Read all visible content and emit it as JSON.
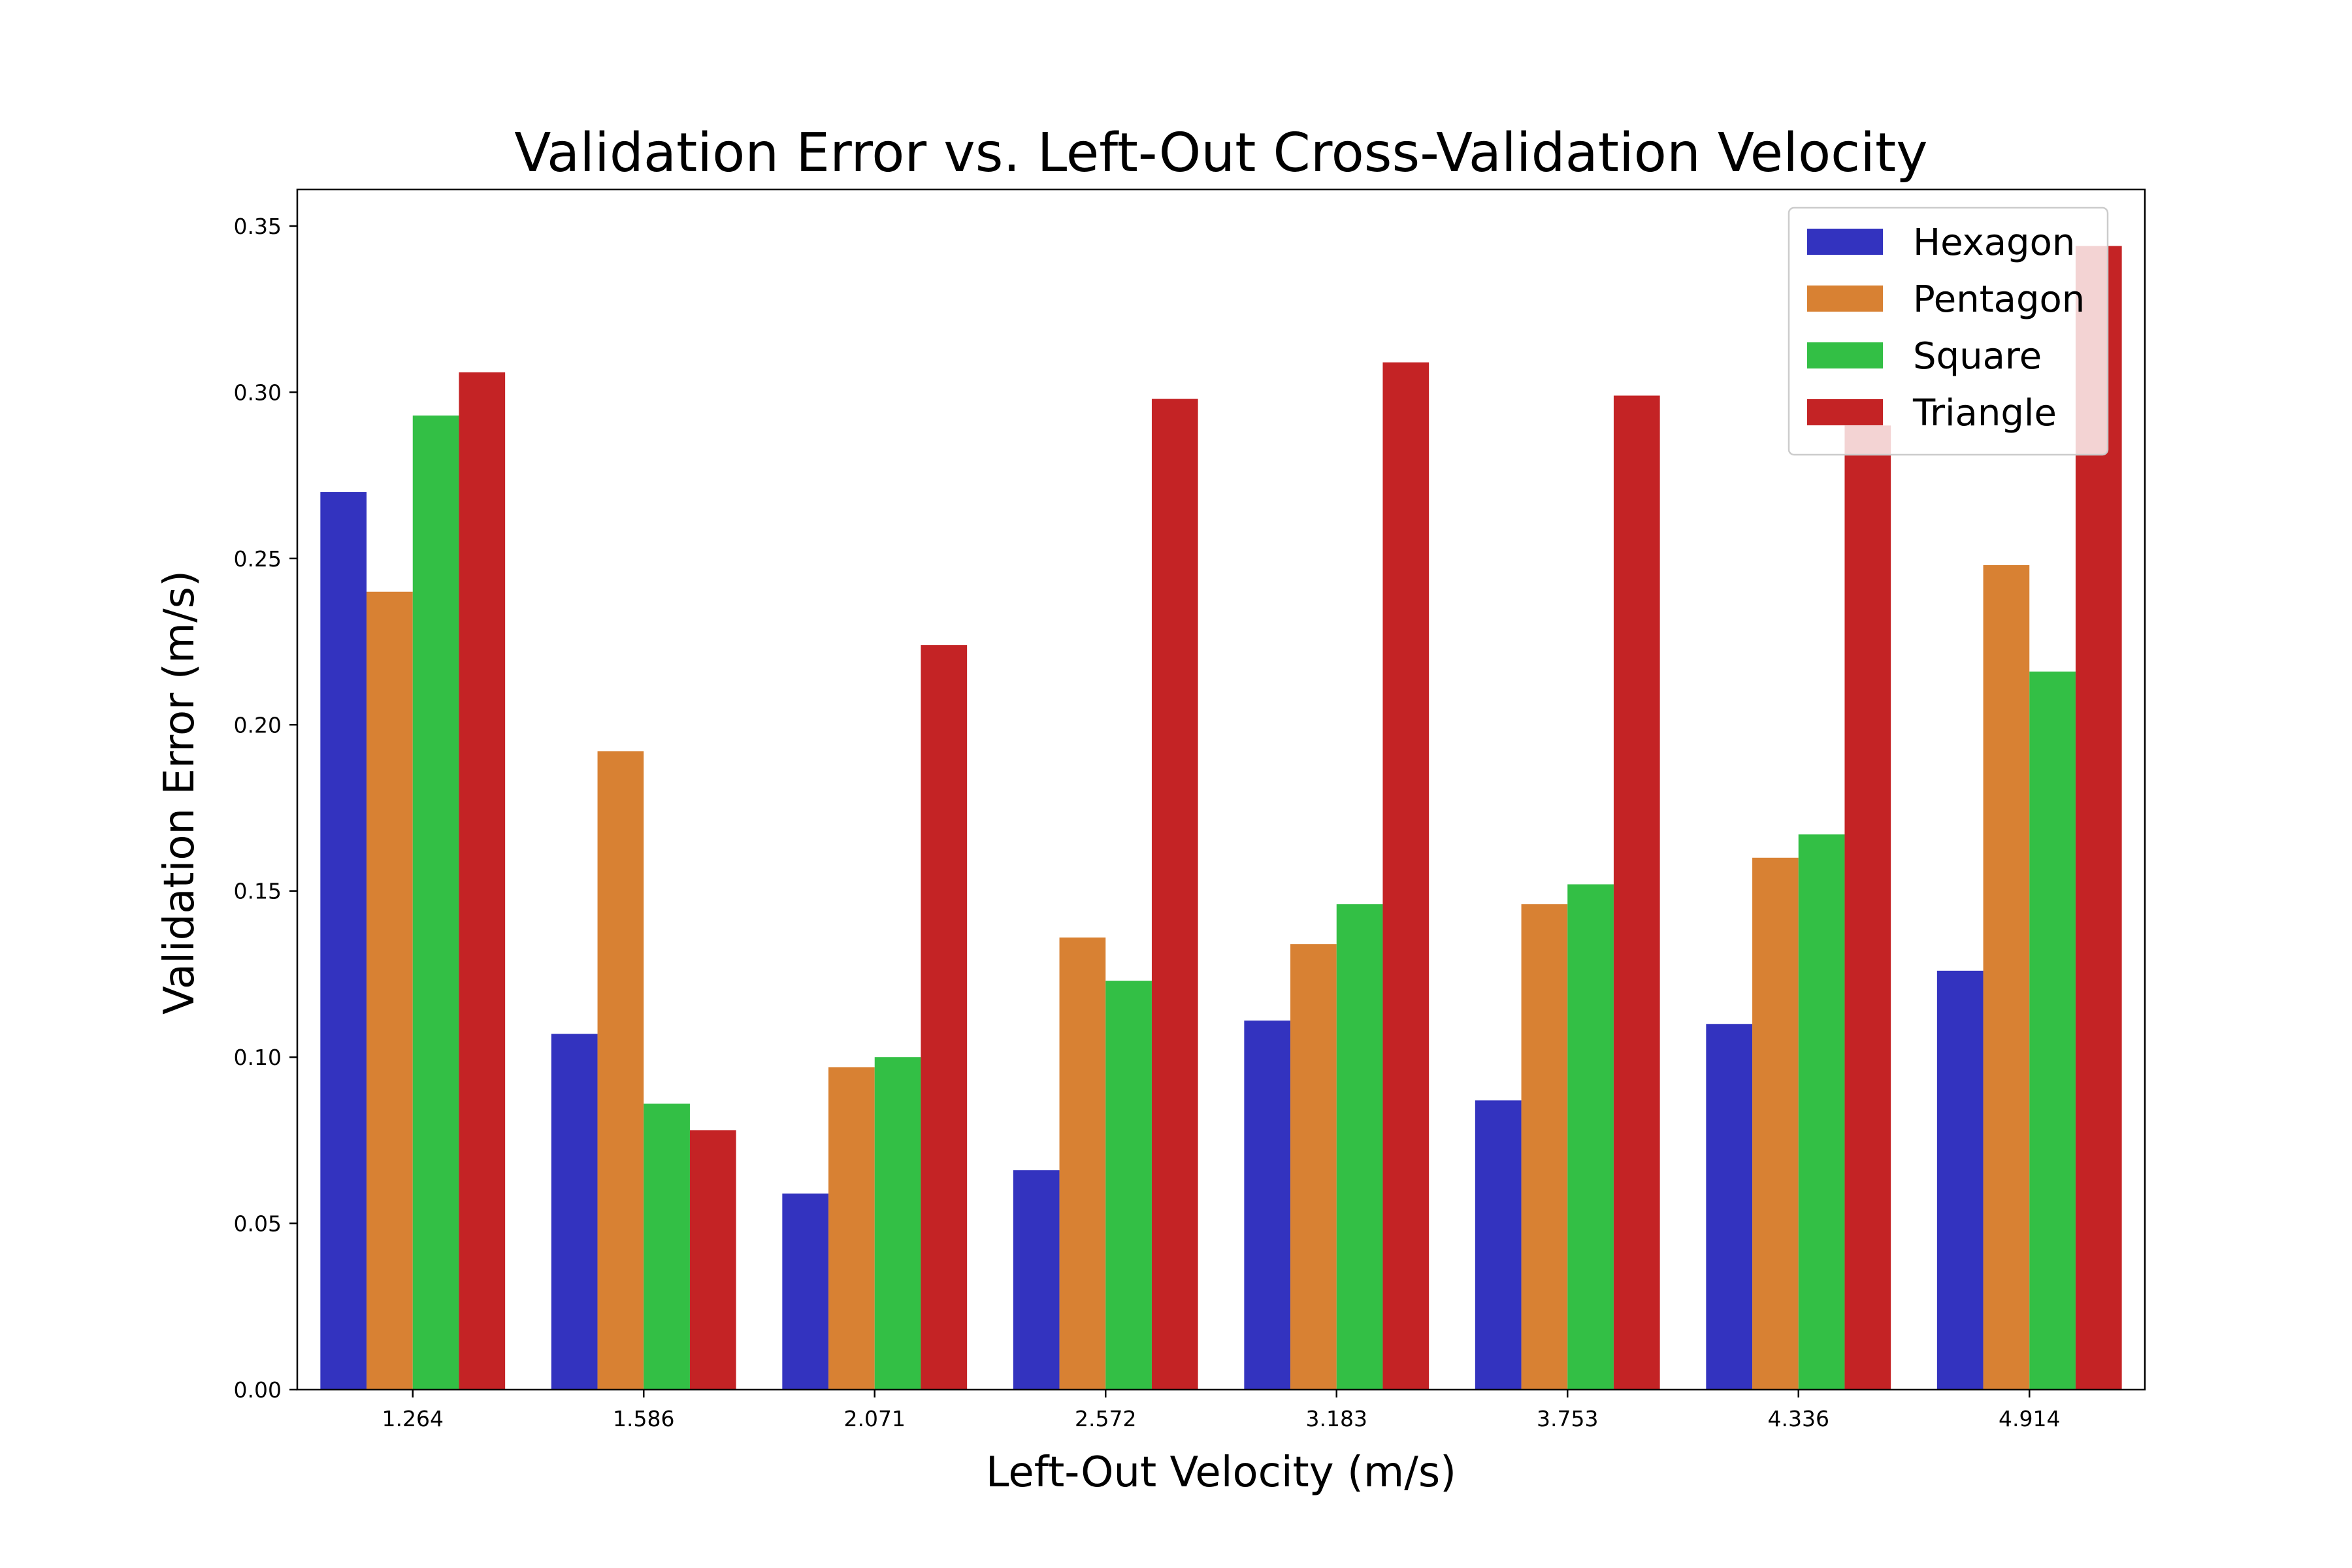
{
  "chart_data": {
    "type": "bar",
    "title": "Validation Error vs. Left-Out Cross-Validation Velocity",
    "xlabel": "Left-Out Velocity (m/s)",
    "ylabel": "Validation Error (m/s)",
    "categories": [
      "1.264",
      "1.586",
      "2.071",
      "2.572",
      "3.183",
      "3.753",
      "4.336",
      "4.914"
    ],
    "ylim": [
      0,
      0.361
    ],
    "yticks": [
      "0.00",
      "0.05",
      "0.10",
      "0.15",
      "0.20",
      "0.25",
      "0.30",
      "0.35"
    ],
    "grid": false,
    "legend_position": "top-right",
    "series": [
      {
        "name": "Hexagon",
        "color": "#3333bf",
        "values": [
          0.27,
          0.107,
          0.059,
          0.066,
          0.111,
          0.087,
          0.11,
          0.126
        ]
      },
      {
        "name": "Pentagon",
        "color": "#d88133",
        "values": [
          0.24,
          0.192,
          0.097,
          0.136,
          0.134,
          0.146,
          0.16,
          0.248
        ]
      },
      {
        "name": "Square",
        "color": "#33bf45",
        "values": [
          0.293,
          0.086,
          0.1,
          0.123,
          0.146,
          0.152,
          0.167,
          0.216
        ]
      },
      {
        "name": "Triangle",
        "color": "#c42325",
        "values": [
          0.306,
          0.078,
          0.224,
          0.298,
          0.309,
          0.299,
          0.29,
          0.344
        ]
      }
    ]
  }
}
